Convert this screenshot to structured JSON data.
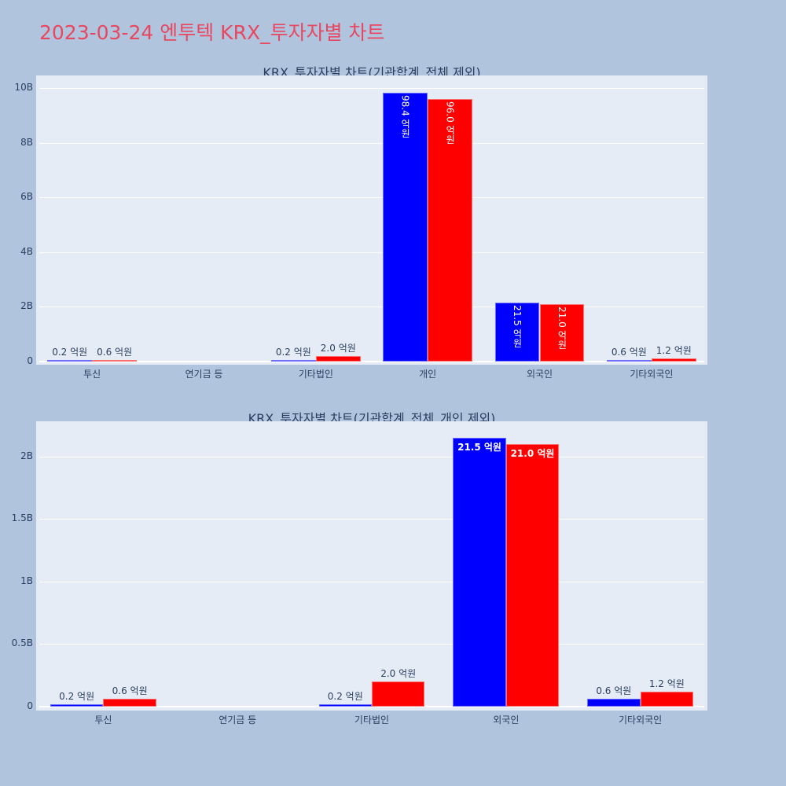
{
  "page": {
    "title": "2023-03-24 엔투텍 KRX_투자자별 차트",
    "title_color": "#e8475f",
    "background": "#b0c4de"
  },
  "colors": {
    "series1": "#0000ff",
    "series2": "#ff0000",
    "plot_bg": "#e5ecf6"
  },
  "chart_data": [
    {
      "type": "bar",
      "title": "KRX_투자자별 차트(기관합계_전체 제외)",
      "categories": [
        "투신",
        "연기금 등",
        "기타법인",
        "개인",
        "외국인",
        "기타외국인"
      ],
      "series": [
        {
          "name": "series1",
          "color": "#0000ff",
          "values": [
            0.02,
            0,
            0.02,
            9.84,
            2.15,
            0.06
          ],
          "labels": [
            "0.2 억원",
            "",
            "0.2 억원",
            "98.4 억원",
            "21.5 억원",
            "0.6 억원"
          ]
        },
        {
          "name": "series2",
          "color": "#ff0000",
          "values": [
            0.06,
            0,
            0.2,
            9.6,
            2.1,
            0.12
          ],
          "labels": [
            "0.6 억원",
            "",
            "2.0 억원",
            "96.0 억원",
            "21.0 억원",
            "1.2 억원"
          ]
        }
      ],
      "yticks": [
        "0",
        "2B",
        "4B",
        "6B",
        "8B",
        "10B"
      ],
      "ylim": [
        0,
        10.4
      ],
      "yunit": "B",
      "xlabel": "",
      "ylabel": "",
      "grid": true,
      "legend": false
    },
    {
      "type": "bar",
      "title": "KRX_투자자별 차트(기관합계_전체_개인 제외)",
      "categories": [
        "투신",
        "연기금 등",
        "기타법인",
        "외국인",
        "기타외국인"
      ],
      "series": [
        {
          "name": "series1",
          "color": "#0000ff",
          "values": [
            0.02,
            0,
            0.02,
            2.15,
            0.06
          ],
          "labels": [
            "0.2 억원",
            "",
            "0.2 억원",
            "21.5 억원",
            "0.6 억원"
          ]
        },
        {
          "name": "series2",
          "color": "#ff0000",
          "values": [
            0.06,
            0,
            0.2,
            2.1,
            0.12
          ],
          "labels": [
            "0.6 억원",
            "",
            "2.0 억원",
            "21.0 억원",
            "1.2 억원"
          ]
        }
      ],
      "yticks": [
        "0",
        "0.5B",
        "1B",
        "1.5B",
        "2B"
      ],
      "ylim": [
        0,
        2.27
      ],
      "yunit": "B",
      "xlabel": "",
      "ylabel": "",
      "grid": true,
      "legend": false
    }
  ]
}
